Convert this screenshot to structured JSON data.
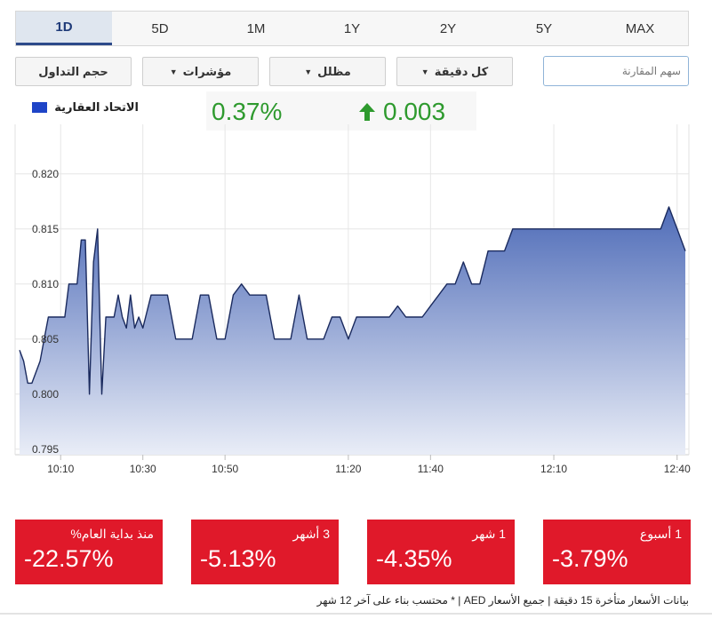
{
  "tabs": [
    "1D",
    "5D",
    "1M",
    "1Y",
    "2Y",
    "5Y",
    "MAX"
  ],
  "active_tab": "1D",
  "controls": {
    "volume": "حجم التداول",
    "indicators": "مؤشرات",
    "shaded": "مظلل",
    "interval": "كل دقيقة",
    "compare_placeholder": "سهم المقارنة"
  },
  "legend": {
    "label": "الاتحاد العقارية",
    "color": "#1e44c7"
  },
  "header_stats": {
    "percent_change": "0.37%",
    "change": "0.003",
    "color": "#2e9a2e"
  },
  "chart_data": {
    "type": "area",
    "series": [
      {
        "name": "الاتحاد العقارية",
        "x": [
          "10:00",
          "10:01",
          "10:02",
          "10:03",
          "10:04",
          "10:05",
          "10:06",
          "10:07",
          "10:08",
          "10:09",
          "10:10",
          "10:11",
          "10:12",
          "10:13",
          "10:14",
          "10:15",
          "10:16",
          "10:17",
          "10:18",
          "10:19",
          "10:20",
          "10:21",
          "10:22",
          "10:23",
          "10:24",
          "10:25",
          "10:26",
          "10:27",
          "10:28",
          "10:29",
          "10:30",
          "10:32",
          "10:34",
          "10:36",
          "10:38",
          "10:40",
          "10:42",
          "10:44",
          "10:46",
          "10:48",
          "10:50",
          "10:52",
          "10:54",
          "10:56",
          "10:58",
          "11:00",
          "11:02",
          "11:04",
          "11:06",
          "11:08",
          "11:10",
          "11:12",
          "11:14",
          "11:16",
          "11:18",
          "11:20",
          "11:22",
          "11:24",
          "11:26",
          "11:28",
          "11:30",
          "11:32",
          "11:34",
          "11:36",
          "11:38",
          "11:40",
          "11:42",
          "11:44",
          "11:46",
          "11:48",
          "11:50",
          "11:52",
          "11:54",
          "11:56",
          "11:58",
          "12:00",
          "12:02",
          "12:04",
          "12:06",
          "12:08",
          "12:10",
          "12:12",
          "12:14",
          "12:16",
          "12:18",
          "12:20",
          "12:22",
          "12:24",
          "12:26",
          "12:28",
          "12:30",
          "12:32",
          "12:34",
          "12:36",
          "12:38",
          "12:40",
          "12:42"
        ],
        "values": [
          0.804,
          0.803,
          0.801,
          0.801,
          0.802,
          0.803,
          0.805,
          0.807,
          0.807,
          0.807,
          0.807,
          0.807,
          0.81,
          0.81,
          0.81,
          0.814,
          0.814,
          0.8,
          0.812,
          0.815,
          0.8,
          0.807,
          0.807,
          0.807,
          0.809,
          0.807,
          0.806,
          0.809,
          0.806,
          0.807,
          0.806,
          0.809,
          0.809,
          0.809,
          0.805,
          0.805,
          0.805,
          0.809,
          0.809,
          0.805,
          0.805,
          0.809,
          0.81,
          0.809,
          0.809,
          0.809,
          0.805,
          0.805,
          0.805,
          0.809,
          0.805,
          0.805,
          0.805,
          0.807,
          0.807,
          0.805,
          0.807,
          0.807,
          0.807,
          0.807,
          0.807,
          0.808,
          0.807,
          0.807,
          0.807,
          0.808,
          0.809,
          0.81,
          0.81,
          0.812,
          0.81,
          0.81,
          0.813,
          0.813,
          0.813,
          0.815,
          0.815,
          0.815,
          0.815,
          0.815,
          0.815,
          0.815,
          0.815,
          0.815,
          0.815,
          0.815,
          0.815,
          0.815,
          0.815,
          0.815,
          0.815,
          0.815,
          0.815,
          0.815,
          0.817,
          0.815,
          0.813
        ]
      }
    ],
    "xticks": [
      "10:10",
      "10:30",
      "10:50",
      "11:20",
      "11:40",
      "12:10",
      "12:40"
    ],
    "yticks": [
      0.795,
      0.8,
      0.805,
      0.81,
      0.815,
      0.82
    ],
    "ylim": [
      0.7945,
      0.8245
    ],
    "xlim": [
      "10:00",
      "12:42"
    ],
    "grid": true,
    "line_color": "#1a2a5e",
    "fill_color_top": "#4f6cb8",
    "fill_color_bottom": "#e9edf7"
  },
  "performance": [
    {
      "label": "منذ بداية العام%",
      "value": "-22.57%"
    },
    {
      "label": "3 أشهر",
      "value": "-5.13%"
    },
    {
      "label": "1 شهر",
      "value": "-4.35%"
    },
    {
      "label": "1 أسبوع",
      "value": "-3.79%"
    }
  ],
  "footnote": "بيانات الأسعار متأخرة 15 دقيقة | جميع الأسعار AED | * محتسب بناء على آخر 12 شهر"
}
